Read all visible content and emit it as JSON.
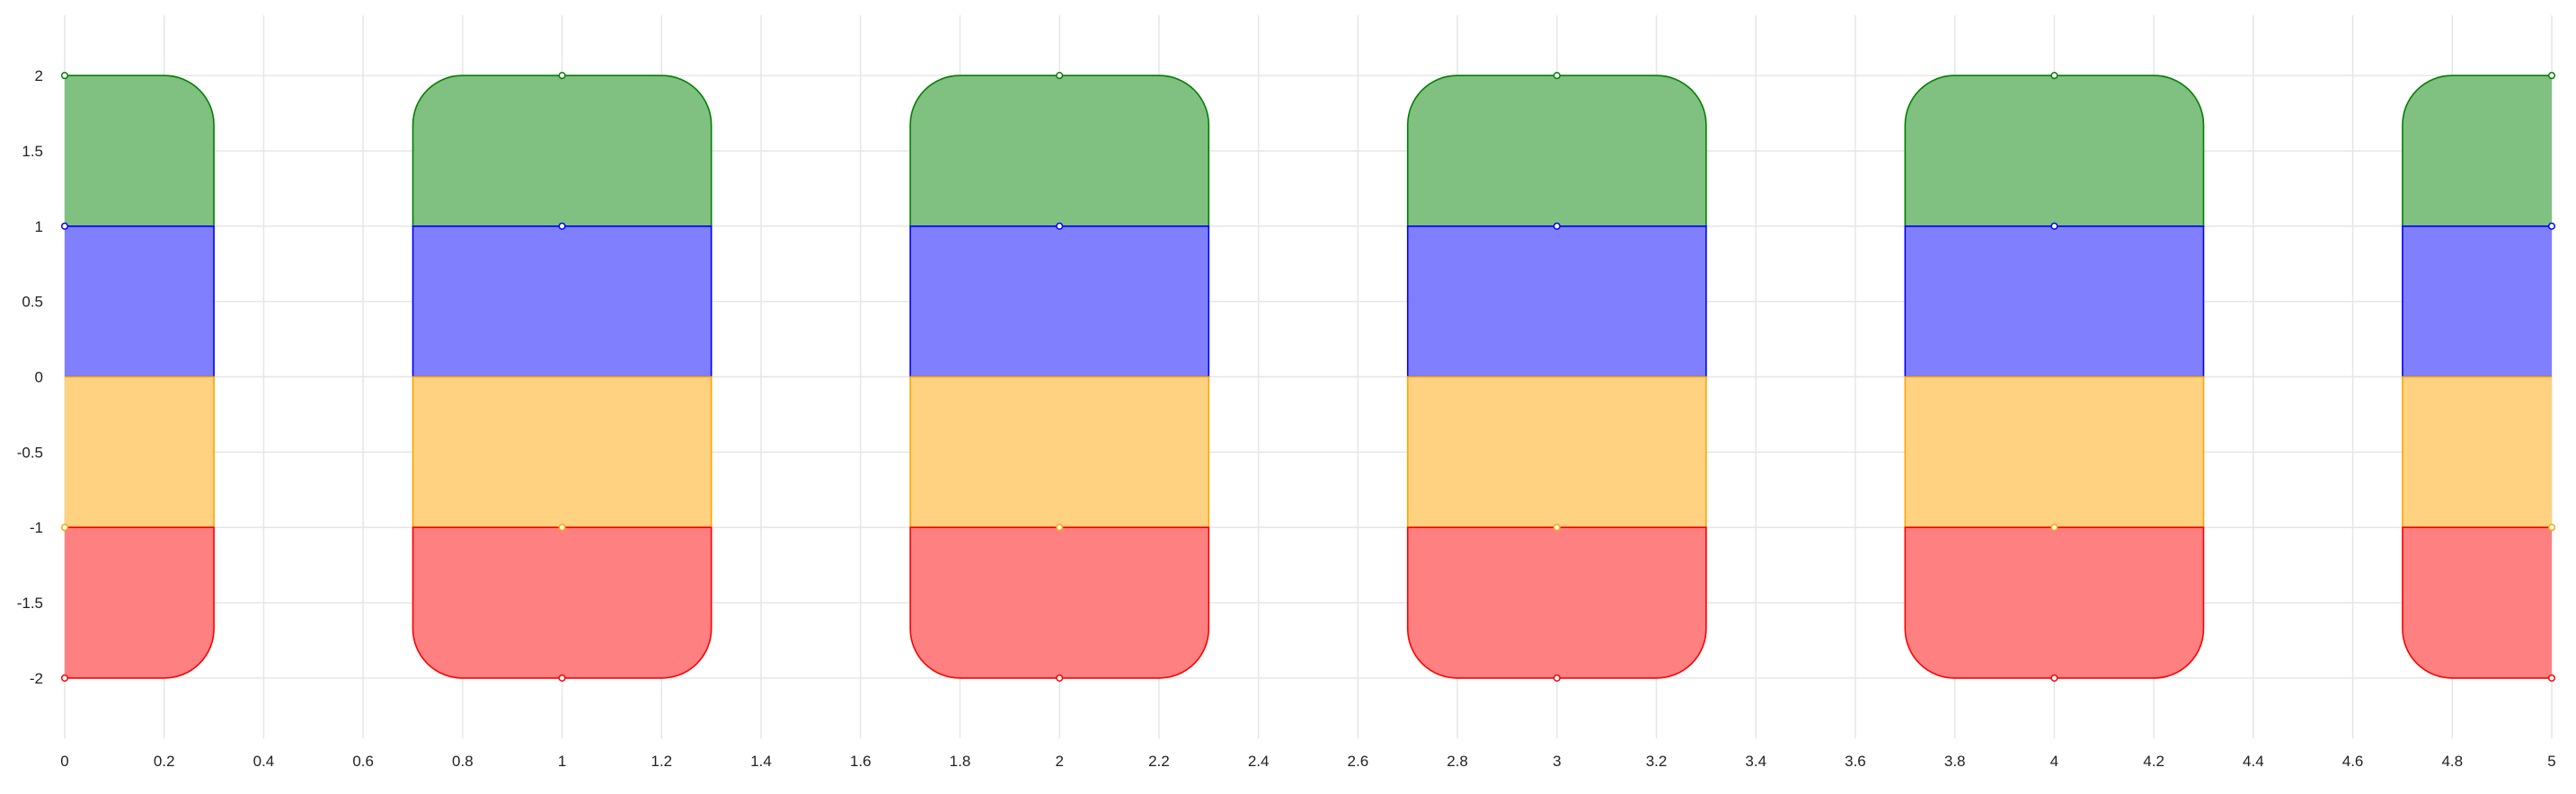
{
  "chart_data": {
    "type": "bar",
    "title": "",
    "xlabel": "",
    "ylabel": "",
    "xlim": [
      0,
      5
    ],
    "ylim": [
      -2.4,
      2.4
    ],
    "grid": true,
    "legend": "none",
    "x_ticks": [
      "0",
      "0.2",
      "0.4",
      "0.6",
      "0.8",
      "1",
      "1.2",
      "1.4",
      "1.6",
      "1.8",
      "2",
      "2.2",
      "2.4",
      "2.6",
      "2.8",
      "3",
      "3.2",
      "3.4",
      "3.6",
      "3.8",
      "4",
      "4.2",
      "4.4",
      "4.6",
      "4.8",
      "5"
    ],
    "y_ticks": [
      "2",
      "1.5",
      "1",
      "0.5",
      "0",
      "-0.5",
      "-1",
      "-1.5",
      "-2"
    ],
    "x": [
      0,
      1,
      2,
      3,
      4,
      5
    ],
    "bar_width": 0.6,
    "series": [
      {
        "values": [
          2,
          2,
          2,
          2,
          2,
          2
        ],
        "base": 1,
        "color": "#008000",
        "fill": "#80c080",
        "rounded": "top"
      },
      {
        "values": [
          1,
          1,
          1,
          1,
          1,
          1
        ],
        "base": 0,
        "color": "#0000ff",
        "fill": "#8080ff",
        "rounded": "none"
      },
      {
        "values": [
          -1,
          -1,
          -1,
          -1,
          -1,
          -1
        ],
        "base": 0,
        "color": "#ffa500",
        "fill": "#fed280",
        "rounded": "none"
      },
      {
        "values": [
          -2,
          -2,
          -2,
          -2,
          -2,
          -2
        ],
        "base": -1,
        "color": "#ff0000",
        "fill": "#ff8080",
        "rounded": "bottom"
      }
    ]
  }
}
